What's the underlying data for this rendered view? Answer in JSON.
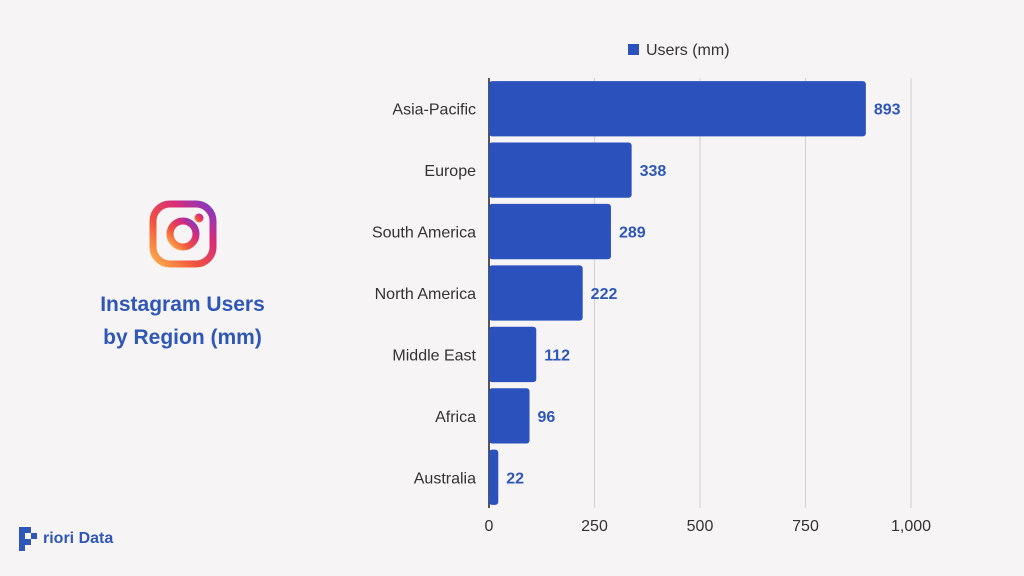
{
  "colors": {
    "accent": "#2f57b8",
    "bar": "#2b51bd",
    "grid": "#d5d3d6",
    "axis": "#222222",
    "label": "#333333"
  },
  "icons": {
    "app_logo": "instagram-logo-icon",
    "brand_logo": "priori-data-logo-icon"
  },
  "side_panel": {
    "title_line1": "Instagram Users",
    "title_line2": "by Region (mm)"
  },
  "brand": {
    "name": "riori Data"
  },
  "chart_data": {
    "type": "bar",
    "orientation": "horizontal",
    "categories": [
      "Asia-Pacific",
      "Europe",
      "South America",
      "North America",
      "Middle East",
      "Africa",
      "Australia"
    ],
    "series": [
      {
        "name": "Users (mm)",
        "values": [
          893,
          338,
          289,
          222,
          112,
          96,
          22
        ]
      }
    ],
    "xlim": [
      0,
      1000
    ],
    "x_ticks": [
      "0",
      "250",
      "500",
      "750",
      "1,000"
    ],
    "legend": "top",
    "grid": true,
    "data_labels": [
      "893",
      "338",
      "289",
      "222",
      "112",
      "96",
      "22"
    ]
  }
}
